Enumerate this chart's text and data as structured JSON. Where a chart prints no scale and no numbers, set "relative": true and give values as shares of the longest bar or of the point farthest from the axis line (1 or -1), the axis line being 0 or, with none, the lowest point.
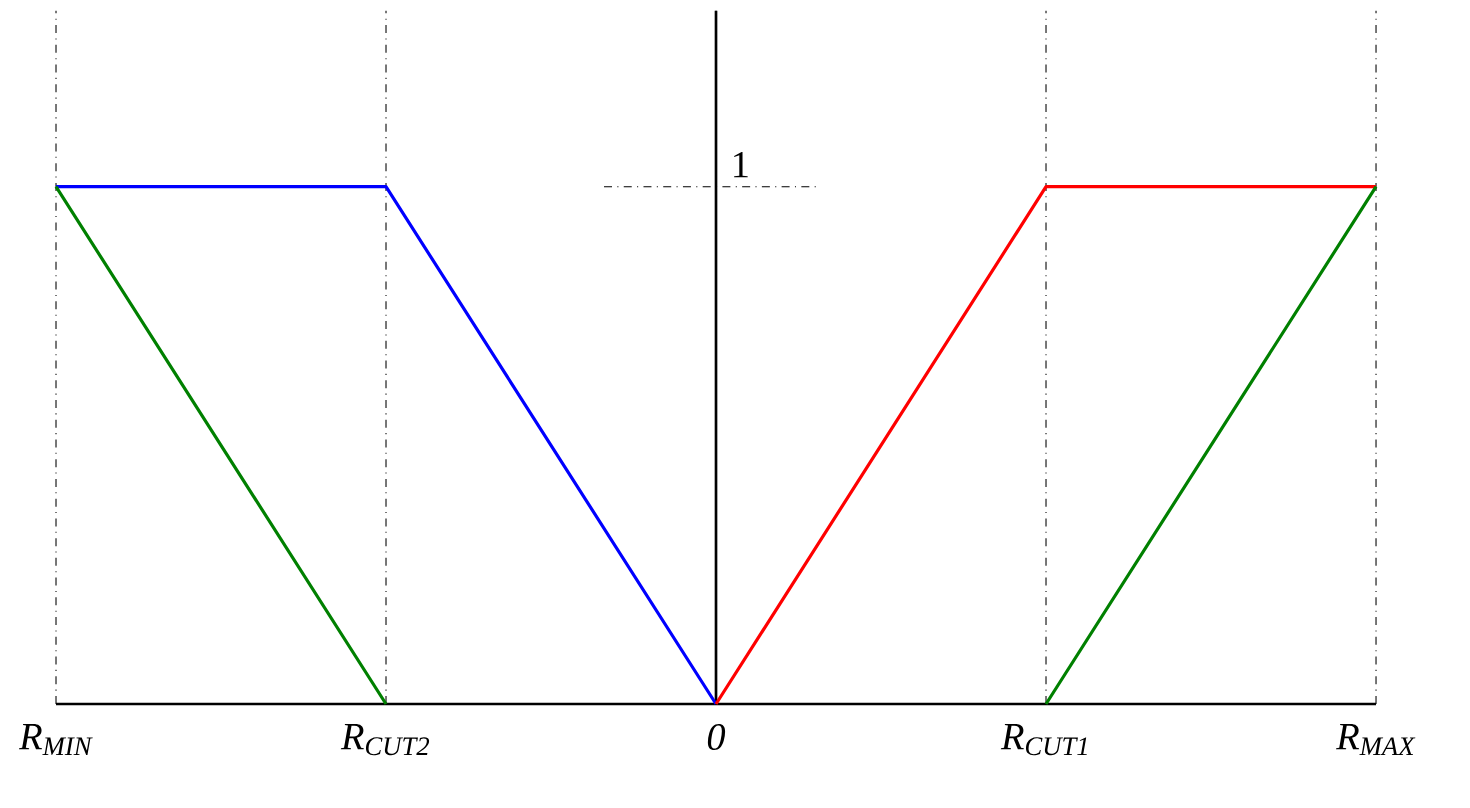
{
  "chart_data": {
    "type": "line",
    "relative": true,
    "categories": [
      "R$_{MIN}$",
      "R$_{CUT2}$",
      "0",
      "R$_{CUT1}$",
      "R$_{MAX}$"
    ],
    "series": [
      {
        "color": "#0000ff",
        "values": [
          1,
          1,
          0,
          null,
          null
        ]
      },
      {
        "color": "#ff0000",
        "values": [
          null,
          null,
          0,
          1,
          1
        ]
      },
      {
        "color": "#008000",
        "values": [
          1,
          0,
          null,
          0,
          1
        ]
      }
    ],
    "ref_lines": [
      {
        "axis": "x",
        "value": "0",
        "color": "#000000",
        "line_style": "solid"
      }
    ],
    "annotations": [
      "1"
    ],
    "grid": "x",
    "marker": "none",
    "line_style": "solid"
  }
}
